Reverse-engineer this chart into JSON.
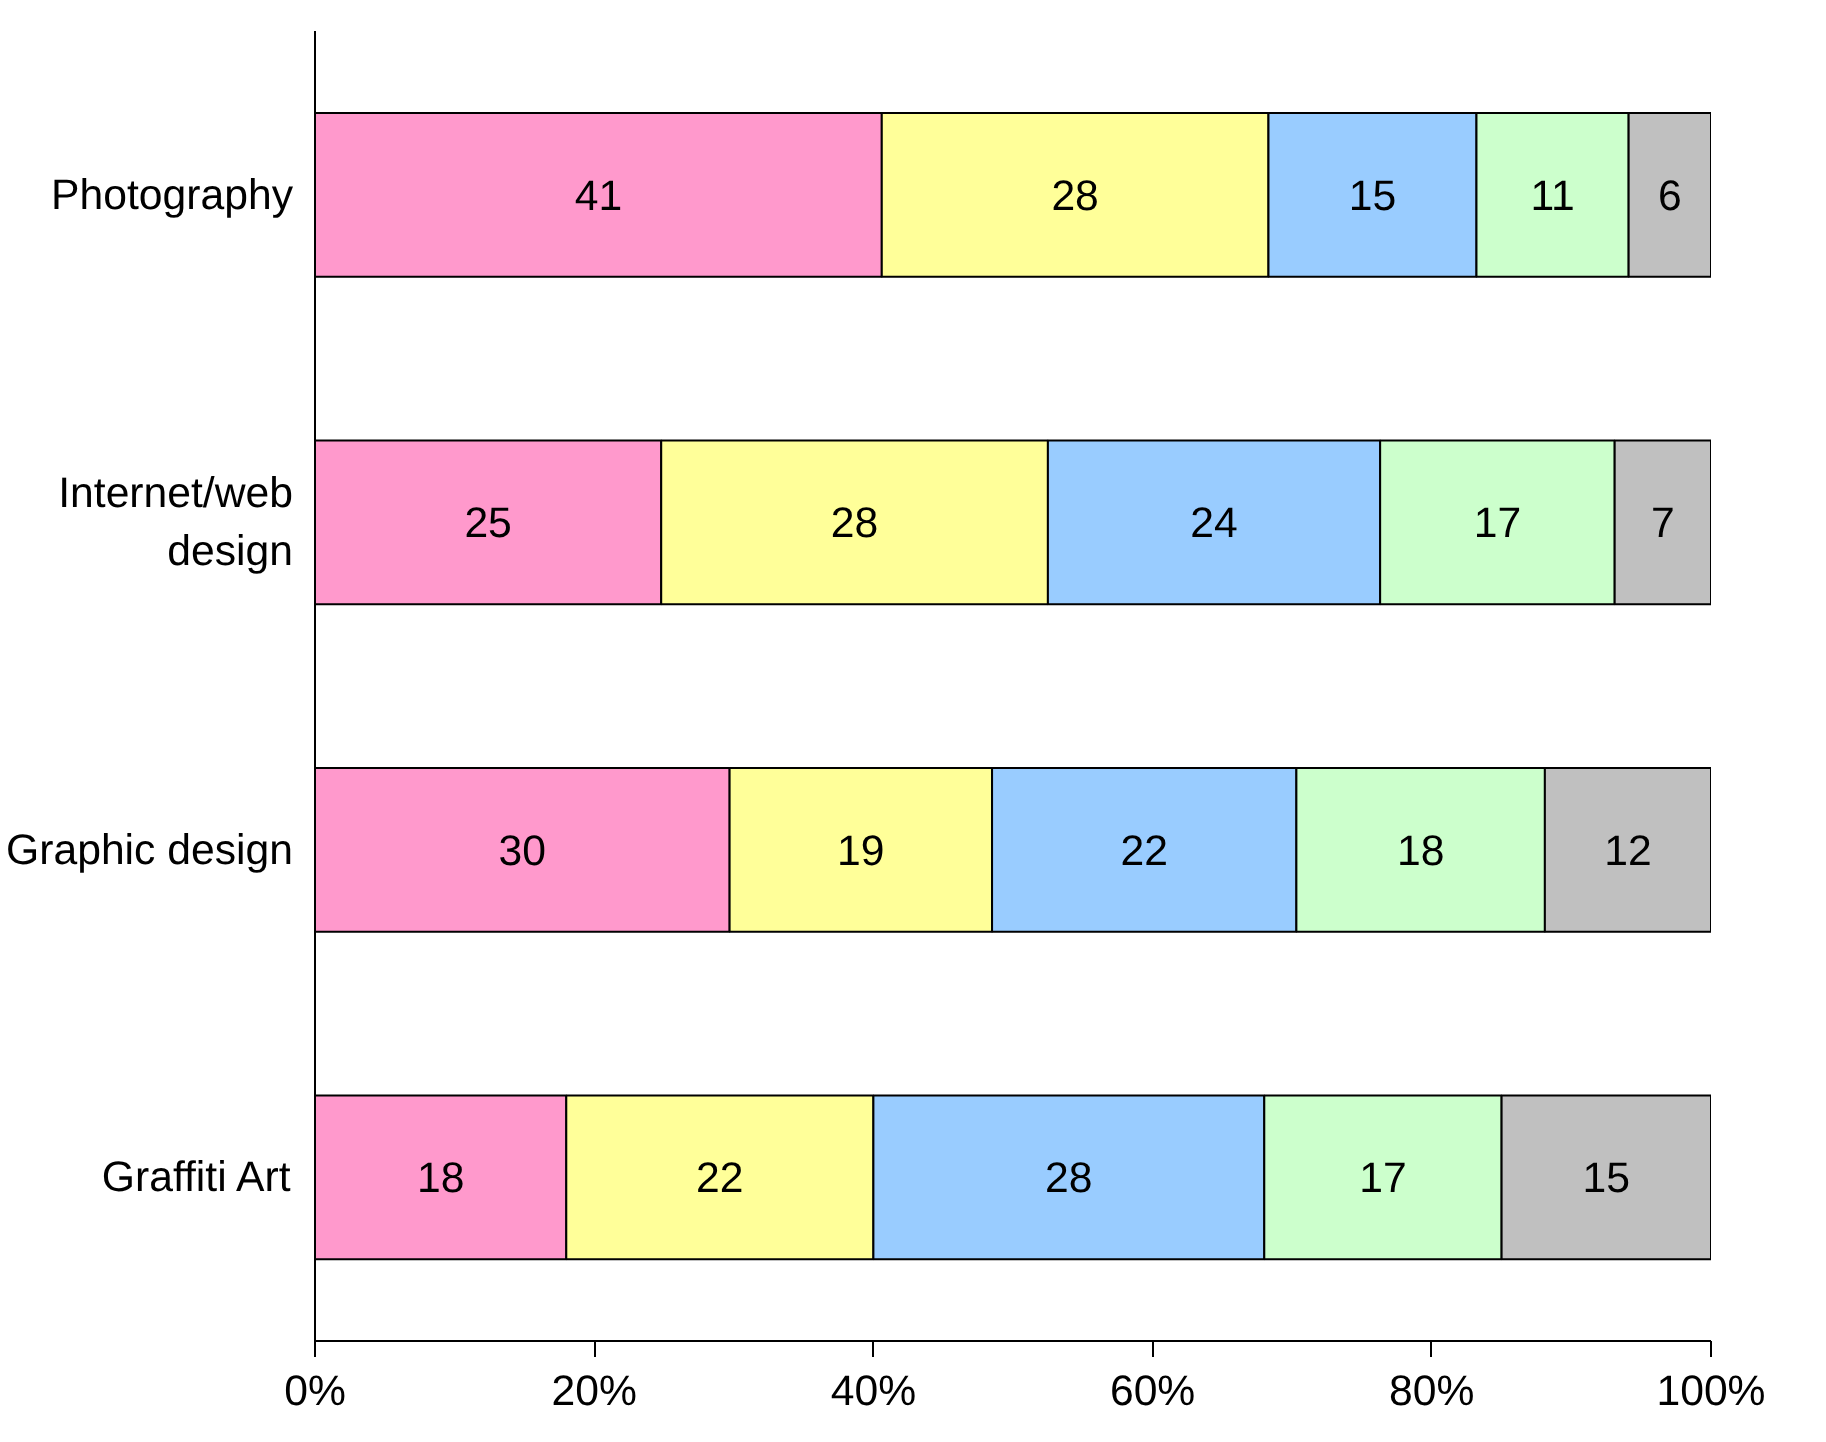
{
  "chart_data": {
    "type": "bar",
    "orientation": "horizontal",
    "stacked": true,
    "categories": [
      "Photography",
      "Internet/web design",
      "Graphic design",
      "Graffiti Art"
    ],
    "series": [
      {
        "color": "#ff99cc",
        "values": [
          40.6,
          24.8,
          29.7,
          18
        ],
        "value_labels": [
          "41",
          "25",
          "30",
          "18"
        ]
      },
      {
        "color": "#ffff99",
        "values": [
          27.7,
          27.7,
          18.8,
          22
        ],
        "value_labels": [
          "28",
          "28",
          "19",
          "22"
        ]
      },
      {
        "color": "#99ccff",
        "values": [
          14.9,
          23.8,
          21.8,
          28
        ],
        "value_labels": [
          "15",
          "24",
          "22",
          "28"
        ]
      },
      {
        "color": "#ccffcc",
        "values": [
          10.9,
          16.8,
          17.8,
          17
        ],
        "value_labels": [
          "11",
          "17",
          "18",
          "17"
        ]
      },
      {
        "color": "#c0c0c0",
        "values": [
          5.9,
          6.9,
          11.9,
          15
        ],
        "value_labels": [
          "6",
          "7",
          "12",
          "15"
        ]
      }
    ],
    "xlim": [
      0,
      100
    ],
    "xticks": [
      {
        "value": 0,
        "label": "0%"
      },
      {
        "value": 20,
        "label": "20%"
      },
      {
        "value": 40,
        "label": "40%"
      },
      {
        "value": 60,
        "label": "60%"
      },
      {
        "value": 80,
        "label": "80%"
      },
      {
        "value": 100,
        "label": "100%"
      }
    ],
    "grid": false
  }
}
